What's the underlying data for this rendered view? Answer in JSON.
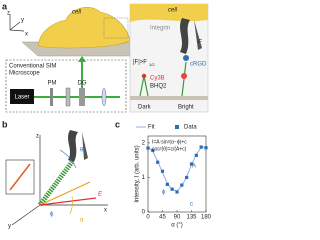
{
  "panel_a": {
    "label": "a",
    "cell": "cell",
    "axes": [
      "z",
      "y",
      "x"
    ],
    "microscope": [
      "Conventional SIM",
      "Microscope"
    ],
    "pm": "PM",
    "dg": "DG",
    "laser": "Laser",
    "inset": {
      "cell": "cell",
      "integrin": "Integrin",
      "force": "|F|>F",
      "force_sub": "1/2",
      "crgd": "cRGD",
      "cy3b": "Cy3B",
      "bhq2": "BHQ2",
      "dark": "Dark",
      "bright": "Bright",
      "f": "F"
    }
  },
  "panel_b": {
    "label": "b",
    "axes": [
      "z",
      "y",
      "x"
    ],
    "theta": "θ",
    "alpha": "α",
    "phi": "ϕ",
    "e": "E"
  },
  "panel_c": {
    "label": "c",
    "chart_data": {
      "type": "line",
      "x_label": "α (°)",
      "y_label": "Intensity, I (arb. units)",
      "equations": [
        "I=A·sin²(α−ϕ)+c",
        "cos²(θ)=c/(A+c)"
      ],
      "annotations": [
        "A",
        "c",
        "ϕ"
      ],
      "x": [
        0,
        15,
        30,
        45,
        60,
        75,
        90,
        105,
        120,
        135,
        150,
        165,
        180
      ],
      "series": [
        {
          "name": "Fit",
          "color": "#8fb3de",
          "mode": "line",
          "values": [
            1.89,
            1.75,
            1.47,
            1.14,
            0.83,
            0.64,
            0.61,
            0.75,
            1.03,
            1.36,
            1.67,
            1.86,
            1.89
          ]
        },
        {
          "name": "Data",
          "color": "#2f6db5",
          "mode": "markers",
          "values": [
            1.85,
            1.78,
            1.44,
            1.18,
            0.8,
            0.66,
            0.58,
            0.78,
            1.0,
            1.39,
            1.64,
            1.88,
            1.86
          ]
        }
      ],
      "xlim": [
        0,
        180
      ],
      "xticks": [
        0,
        45,
        90,
        135,
        180
      ],
      "ylim": [
        0,
        2.2
      ],
      "yticks": [
        0,
        1,
        2
      ]
    }
  }
}
